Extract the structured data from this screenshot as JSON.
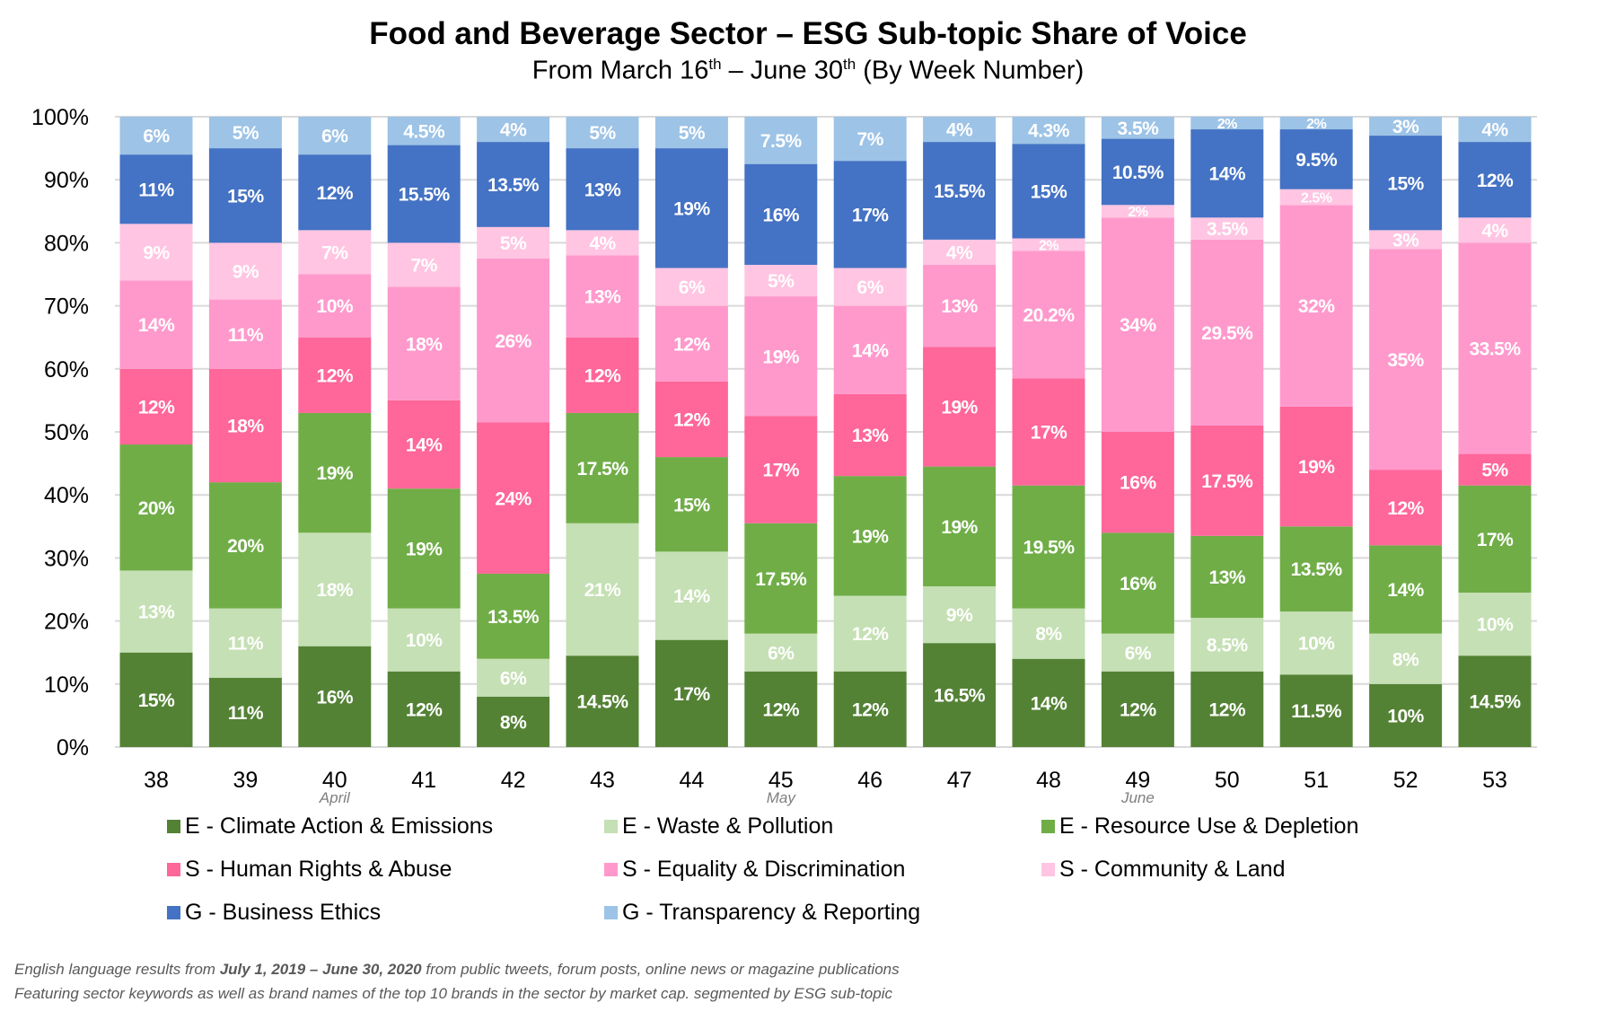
{
  "chart_data": {
    "type": "bar",
    "stacked": "100%",
    "title": "Food and Beverage Sector – ESG Sub-topic Share of Voice",
    "subtitle_parts": [
      "From March 16",
      "th",
      " – June 30",
      "th",
      " (By Week Number)"
    ],
    "categories": [
      "38",
      "39",
      "40",
      "41",
      "42",
      "43",
      "44",
      "45",
      "46",
      "47",
      "48",
      "49",
      "50",
      "51",
      "52",
      "53"
    ],
    "month_markers": [
      {
        "category": "40",
        "label": "April"
      },
      {
        "category": "45",
        "label": "May"
      },
      {
        "category": "49",
        "label": "June"
      }
    ],
    "y_ticks": [
      "0%",
      "10%",
      "20%",
      "30%",
      "40%",
      "50%",
      "60%",
      "70%",
      "80%",
      "90%",
      "100%"
    ],
    "ylim": [
      0,
      100
    ],
    "grid": true,
    "legend_position": "bottom",
    "series": [
      {
        "name": "E - Climate Action & Emissions",
        "color": "#548235",
        "values": [
          15,
          11,
          16,
          12,
          8,
          14.5,
          17,
          12,
          12,
          16.5,
          14,
          12,
          12,
          11.5,
          10,
          14.5
        ]
      },
      {
        "name": "E - Waste & Pollution",
        "color": "#c5e0b4",
        "values": [
          13,
          11,
          18,
          10,
          6,
          21,
          14,
          6,
          12,
          9,
          8,
          6,
          8.5,
          10,
          8,
          10
        ]
      },
      {
        "name": "E - Resource Use & Depletion",
        "color": "#70ad47",
        "values": [
          20,
          20,
          19,
          19,
          13.5,
          17.5,
          15,
          17.5,
          19,
          19,
          19.5,
          16,
          13,
          13.5,
          14,
          17
        ]
      },
      {
        "name": "S -  Human Rights & Abuse",
        "color": "#ff6699",
        "values": [
          12,
          18,
          12,
          14,
          24,
          12,
          12,
          17,
          13,
          19,
          17,
          16,
          17.5,
          19,
          12,
          5
        ]
      },
      {
        "name": "S - Equality & Discrimination",
        "color": "#ff99cc",
        "values": [
          14,
          11,
          10,
          18,
          26,
          13,
          12,
          19,
          14,
          13,
          20.2,
          34,
          29.5,
          32,
          35,
          33.5
        ]
      },
      {
        "name": "S - Community & Land",
        "color": "#ffc5e2",
        "values": [
          9,
          9,
          7,
          7,
          5,
          4,
          6,
          5,
          6,
          4,
          2,
          2,
          3.5,
          2.5,
          3,
          4
        ]
      },
      {
        "name": "G - Business Ethics",
        "color": "#4472c4",
        "values": [
          11,
          15,
          12,
          15.5,
          13.5,
          13,
          19,
          16,
          17,
          15.5,
          15,
          10.5,
          14,
          9.5,
          15,
          12
        ]
      },
      {
        "name": "G - Transparency & Reporting",
        "color": "#9dc3e6",
        "values": [
          6,
          5,
          6,
          4.5,
          4,
          5,
          5,
          7.5,
          7,
          4,
          4.3,
          3.5,
          2,
          2,
          3,
          4
        ]
      }
    ]
  },
  "footnote": {
    "line1_parts": [
      "English language results from ",
      "July 1, 2019 – June 30, 2020",
      " from public tweets, forum posts, online news or magazine publications"
    ],
    "line2": "Featuring sector keywords as well as brand names of the top 10 brands in the sector by market cap. segmented by ESG sub-topic"
  }
}
